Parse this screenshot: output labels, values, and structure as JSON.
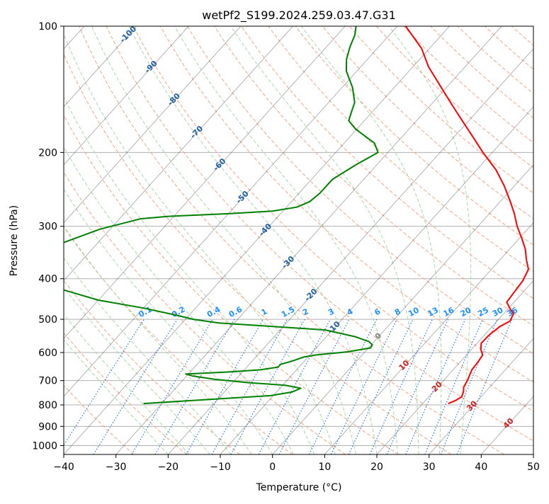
{
  "chart_data": {
    "type": "line",
    "subtype": "skew-t log-p diagram",
    "title": "wetPf2_S199.2024.259.03.47.G31",
    "xlabel": "Temperature (°C)",
    "ylabel": "Pressure (hPa)",
    "xlim": [
      -40,
      50
    ],
    "ylim": [
      1050,
      100
    ],
    "yscale": "log",
    "grid": true,
    "x_ticks": [
      -40,
      -30,
      -20,
      -10,
      0,
      10,
      20,
      30,
      40,
      50
    ],
    "y_ticks": [
      1000,
      900,
      800,
      700,
      600,
      500,
      400,
      300,
      200,
      100
    ],
    "colors": {
      "temperature": "#ff0000",
      "dewpoint": "#008000",
      "isotherm": "#000000",
      "dry_adiabat": "#f4a582",
      "moist_adiabat": "#a6d8a6",
      "mixing_ratio": "#1f77e8",
      "isotherm_label": "#1f5fa0",
      "mixing_ratio_label": "#1e90ff",
      "dry_adiabat_label": "#cc2222",
      "zero_label": "#808080",
      "hline": "#b0b0b0"
    },
    "series": [
      {
        "key": "temperature",
        "color": "#ff0000",
        "points": [
          {
            "p": 794,
            "t": 24.9
          },
          {
            "p": 780,
            "t": 25.8
          },
          {
            "p": 765,
            "t": 26.3
          },
          {
            "p": 745,
            "t": 25.8
          },
          {
            "p": 725,
            "t": 25.0
          },
          {
            "p": 700,
            "t": 24.6
          },
          {
            "p": 660,
            "t": 23.6
          },
          {
            "p": 630,
            "t": 23.4
          },
          {
            "p": 608,
            "t": 23.1
          },
          {
            "p": 590,
            "t": 21.8
          },
          {
            "p": 570,
            "t": 20.8
          },
          {
            "p": 545,
            "t": 20.9
          },
          {
            "p": 520,
            "t": 21.5
          },
          {
            "p": 505,
            "t": 22.5
          },
          {
            "p": 485,
            "t": 21.9
          },
          {
            "p": 470,
            "t": 20.2
          },
          {
            "p": 455,
            "t": 18.6
          },
          {
            "p": 430,
            "t": 18.3
          },
          {
            "p": 405,
            "t": 18.0
          },
          {
            "p": 380,
            "t": 17.1
          },
          {
            "p": 360,
            "t": 15.0
          },
          {
            "p": 340,
            "t": 13.0
          },
          {
            "p": 320,
            "t": 10.4
          },
          {
            "p": 300,
            "t": 7.5
          },
          {
            "p": 280,
            "t": 4.8
          },
          {
            "p": 260,
            "t": 1.6
          },
          {
            "p": 240,
            "t": -2.0
          },
          {
            "p": 220,
            "t": -6.3
          },
          {
            "p": 200,
            "t": -11.8
          },
          {
            "p": 185,
            "t": -16.0
          },
          {
            "p": 170,
            "t": -20.6
          },
          {
            "p": 155,
            "t": -25.6
          },
          {
            "p": 140,
            "t": -31.0
          },
          {
            "p": 125,
            "t": -37.0
          },
          {
            "p": 113,
            "t": -41.5
          },
          {
            "p": 106,
            "t": -45.1
          },
          {
            "p": 100,
            "t": -48.4
          }
        ]
      },
      {
        "key": "dewpoint",
        "color": "#008000",
        "points": [
          {
            "p": 794,
            "t": -33.5
          },
          {
            "p": 760,
            "t": -10.5
          },
          {
            "p": 745,
            "t": -7.0
          },
          {
            "p": 730,
            "t": -6.0
          },
          {
            "p": 718,
            "t": -9.5
          },
          {
            "p": 708,
            "t": -17.0
          },
          {
            "p": 695,
            "t": -24.0
          },
          {
            "p": 682,
            "t": -29.0
          },
          {
            "p": 675,
            "t": -30.5
          },
          {
            "p": 668,
            "t": -23.0
          },
          {
            "p": 660,
            "t": -17.0
          },
          {
            "p": 650,
            "t": -14.0
          },
          {
            "p": 640,
            "t": -14.0
          },
          {
            "p": 630,
            "t": -12.5
          },
          {
            "p": 615,
            "t": -10.8
          },
          {
            "p": 608,
            "t": -8.8
          },
          {
            "p": 598,
            "t": -3.4
          },
          {
            "p": 585,
            "t": 0.4
          },
          {
            "p": 575,
            "t": 0.2
          },
          {
            "p": 565,
            "t": -1.0
          },
          {
            "p": 550,
            "t": -4.5
          },
          {
            "p": 530,
            "t": -11.4
          },
          {
            "p": 520,
            "t": -22.0
          },
          {
            "p": 510,
            "t": -33.0
          },
          {
            "p": 500,
            "t": -38.5
          },
          {
            "p": 490,
            "t": -42.0
          },
          {
            "p": 470,
            "t": -50.0
          },
          {
            "p": 450,
            "t": -60.0
          },
          {
            "p": 410,
            "t": -74.0
          },
          {
            "p": 360,
            "t": -80.0
          },
          {
            "p": 330,
            "t": -77.0
          },
          {
            "p": 305,
            "t": -72.0
          },
          {
            "p": 288,
            "t": -66.0
          },
          {
            "p": 284,
            "t": -61.0
          },
          {
            "p": 280,
            "t": -50.0
          },
          {
            "p": 276,
            "t": -42.0
          },
          {
            "p": 270,
            "t": -38.0
          },
          {
            "p": 262,
            "t": -36.5
          },
          {
            "p": 250,
            "t": -36.0
          },
          {
            "p": 232,
            "t": -36.0
          },
          {
            "p": 214,
            "t": -34.0
          },
          {
            "p": 200,
            "t": -31.9
          },
          {
            "p": 190,
            "t": -34.2
          },
          {
            "p": 176,
            "t": -40.2
          },
          {
            "p": 168,
            "t": -43.0
          },
          {
            "p": 160,
            "t": -44.0
          },
          {
            "p": 152,
            "t": -45.0
          },
          {
            "p": 140,
            "t": -48.0
          },
          {
            "p": 128,
            "t": -52.0
          },
          {
            "p": 120,
            "t": -54.0
          },
          {
            "p": 112,
            "t": -55.5
          },
          {
            "p": 105,
            "t": -56.6
          },
          {
            "p": 100,
            "t": -57.9
          }
        ]
      }
    ],
    "isotherm_labels": [
      {
        "t": -100,
        "text": "-100"
      },
      {
        "t": -90,
        "text": "-90"
      },
      {
        "t": -80,
        "text": "-80"
      },
      {
        "t": -70,
        "text": "-70"
      },
      {
        "t": -60,
        "text": "-60"
      },
      {
        "t": -50,
        "text": "-50"
      },
      {
        "t": -40,
        "text": "-40"
      },
      {
        "t": -30,
        "text": "-30"
      },
      {
        "t": -20,
        "text": "-20"
      },
      {
        "t": -10,
        "text": "-10"
      },
      {
        "t": 0,
        "text": "0"
      },
      {
        "t": 10,
        "text": "10"
      },
      {
        "t": 20,
        "text": "20"
      },
      {
        "t": 30,
        "text": "30"
      },
      {
        "t": 40,
        "text": "40"
      }
    ],
    "mixing_ratio_labels": [
      "0.1",
      "0.2",
      "0.4",
      "0.6",
      "1",
      "1.5",
      "2",
      "3",
      "4",
      "6",
      "8",
      "10",
      "13",
      "16",
      "20",
      "25",
      "30",
      "36"
    ],
    "mixing_ratio_values": [
      0.1,
      0.2,
      0.4,
      0.6,
      1,
      1.5,
      2,
      3,
      4,
      6,
      8,
      10,
      13,
      16,
      20,
      25,
      30,
      36
    ]
  }
}
